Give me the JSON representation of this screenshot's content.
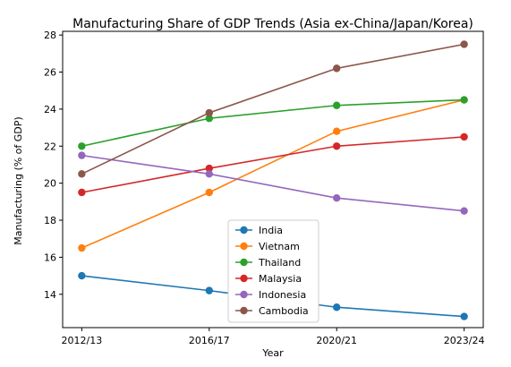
{
  "chart_data": {
    "type": "line",
    "title": "Manufacturing Share of GDP Trends (Asia ex-China/Japan/Korea)",
    "xlabel": "Year",
    "ylabel": "Manufacturing (% of GDP)",
    "categories": [
      "2012/13",
      "2016/17",
      "2020/21",
      "2023/24"
    ],
    "x_positions": [
      0,
      1,
      2,
      3
    ],
    "ylim": [
      12.2,
      28.2
    ],
    "yticks": [
      14,
      16,
      18,
      20,
      22,
      24,
      26,
      28
    ],
    "grid": false,
    "legend_position": "bottom-center",
    "series": [
      {
        "name": "India",
        "color": "#1f77b4",
        "values": [
          15.0,
          14.2,
          13.3,
          12.8
        ]
      },
      {
        "name": "Vietnam",
        "color": "#ff7f0e",
        "values": [
          16.5,
          19.5,
          22.8,
          24.5
        ]
      },
      {
        "name": "Thailand",
        "color": "#2ca02c",
        "values": [
          22.0,
          23.5,
          24.2,
          24.5
        ]
      },
      {
        "name": "Malaysia",
        "color": "#d62728",
        "values": [
          19.5,
          20.8,
          22.0,
          22.5
        ]
      },
      {
        "name": "Indonesia",
        "color": "#9467bd",
        "values": [
          21.5,
          20.5,
          19.2,
          18.5
        ]
      },
      {
        "name": "Cambodia",
        "color": "#8c564b",
        "values": [
          20.5,
          23.8,
          26.2,
          27.5
        ]
      }
    ]
  }
}
